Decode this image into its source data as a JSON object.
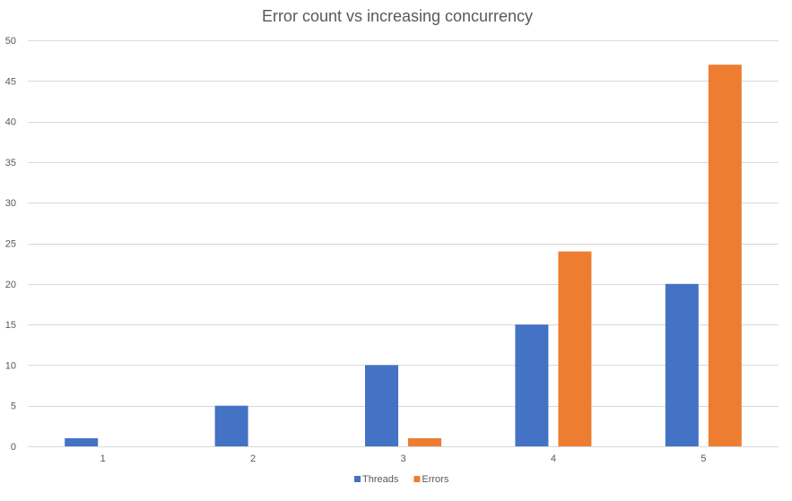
{
  "chart_data": {
    "type": "bar",
    "title": "Error count vs increasing concurrency",
    "xlabel": "",
    "ylabel": "",
    "categories": [
      "1",
      "2",
      "3",
      "4",
      "5"
    ],
    "series": [
      {
        "name": "Threads",
        "values": [
          1,
          5,
          10,
          15,
          20
        ],
        "color": "#4472C4"
      },
      {
        "name": "Errors",
        "values": [
          0,
          0,
          1,
          24,
          47
        ],
        "color": "#ED7D31"
      }
    ],
    "ylim": [
      0,
      50
    ],
    "yticks": [
      0,
      5,
      10,
      15,
      20,
      25,
      30,
      35,
      40,
      45,
      50
    ],
    "grid": true,
    "legend_position": "bottom"
  }
}
